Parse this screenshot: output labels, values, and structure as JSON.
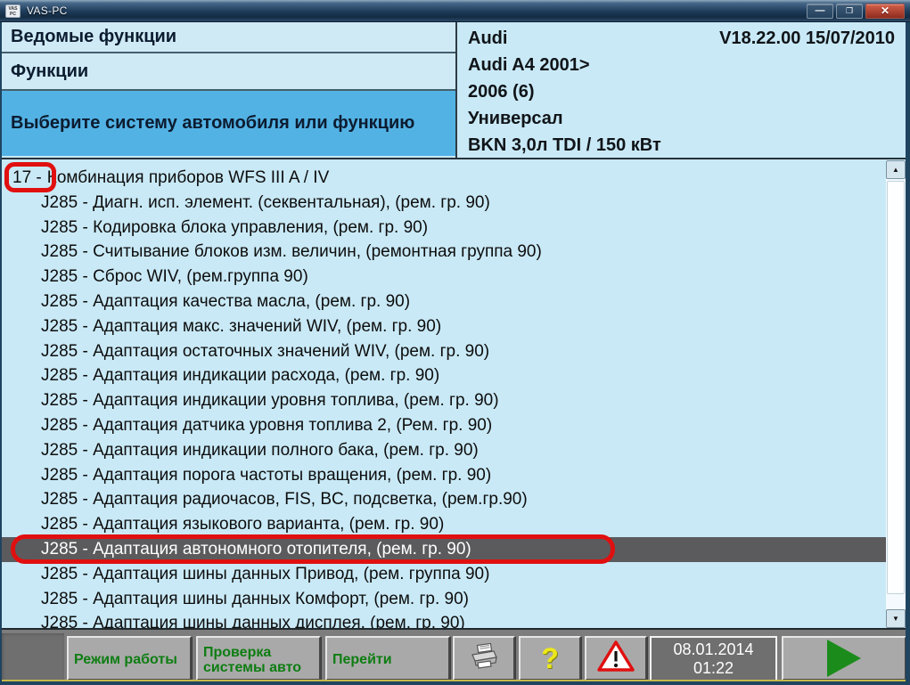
{
  "window": {
    "title": "VAS-PC",
    "app_icon_text": "VAS PC",
    "controls": {
      "minimize": "—",
      "maximize": "❐",
      "close": "✕"
    }
  },
  "header": {
    "nav_rows": [
      {
        "label": "Ведомые функции"
      },
      {
        "label": "Функции"
      },
      {
        "label": "Выберите систему автомобиля или функцию"
      }
    ],
    "vehicle_info": {
      "brand": "Audi",
      "version": "V18.22.00 15/07/2010",
      "model": "Audi A4 2001>",
      "year": "2006 (6)",
      "body": "Универсал",
      "engine": "BKN 3,0л TDI / 150 кВт"
    }
  },
  "list": {
    "items": [
      {
        "prefix": "17 -",
        "text": "Комбинация приборов WFS III A / IV",
        "selected": false,
        "ring": "prefix"
      },
      {
        "text": "J285 - Диагн. исп. элемент. (секвентальная), (рем. гр. 90)",
        "selected": false
      },
      {
        "text": "J285 - Кодировка блока управления, (рем. гр. 90)",
        "selected": false
      },
      {
        "text": "J285 - Считывание блоков изм. величин, (ремонтная группа 90)",
        "selected": false
      },
      {
        "text": "J285 - Сброс WIV, (рем.группа 90)",
        "selected": false
      },
      {
        "text": "J285 - Адаптация качества масла, (рем. гр. 90)",
        "selected": false
      },
      {
        "text": "J285 - Адаптация макс. значений WIV, (рем. гр. 90)",
        "selected": false
      },
      {
        "text": "J285 - Адаптация остаточных значений WIV, (рем. гр. 90)",
        "selected": false
      },
      {
        "text": "J285 - Адаптация индикации расхода, (рем. гр. 90)",
        "selected": false
      },
      {
        "text": "J285 - Адаптация индикации уровня топлива, (рем. гр. 90)",
        "selected": false
      },
      {
        "text": "J285 - Адаптация датчика уровня топлива 2, (Рем. гр. 90)",
        "selected": false
      },
      {
        "text": "J285 - Адаптация индикации полного бака, (рем. гр. 90)",
        "selected": false
      },
      {
        "text": "J285 - Адаптация порога частоты вращения, (рем. гр. 90)",
        "selected": false
      },
      {
        "text": "J285 - Адаптация радиочасов, FIS, BC, подсветка, (рем.гр.90)",
        "selected": false
      },
      {
        "text": "J285 - Адаптация языкового варианта, (рем. гр. 90)",
        "selected": false
      },
      {
        "text": "J285 - Адаптация автономного отопителя, (рем. гр. 90)",
        "selected": true,
        "ring": "row"
      },
      {
        "text": "J285 - Адаптация шины данных Привод, (рем. группа 90)",
        "selected": false
      },
      {
        "text": "J285 - Адаптация шины данных Комфорт, (рем. гр. 90)",
        "selected": false
      },
      {
        "text": "J285 - Адаптация шины данных дисплея, (рем. гр. 90)",
        "selected": false
      }
    ]
  },
  "scrollbar": {
    "up_glyph": "▲",
    "down_glyph": "▼"
  },
  "toolbar": {
    "mode_button": "Режим работы",
    "vehicle_check_button": "Проверка системы авто",
    "goto_button": "Перейти",
    "help_glyph": "?",
    "datetime": {
      "date": "08.01.2014",
      "time": "01:22"
    }
  },
  "colors": {
    "accent_blue": "#53b2e4",
    "panel_blue": "#c9e9f6",
    "selection_gray": "#5b5b5d",
    "annotation_red": "#e01010",
    "button_text_green": "#0e7d12"
  }
}
